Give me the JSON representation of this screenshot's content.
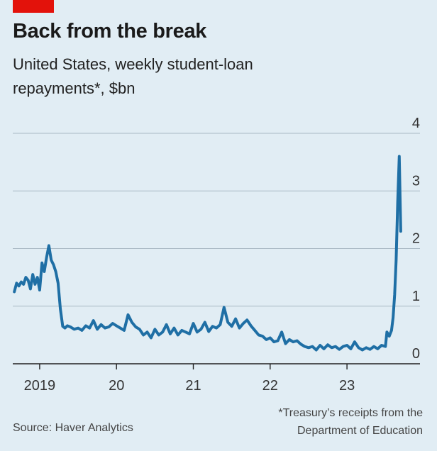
{
  "header": {
    "title": "Back from the break",
    "subtitle_line1": "United States, weekly student-loan",
    "subtitle_line2": "repayments*, $bn"
  },
  "footer": {
    "footnote_line1": "*Treasury’s receipts from the",
    "footnote_line2": "Department of Education",
    "source": "Source: Haver Analytics"
  },
  "colors": {
    "background": "#e1edf4",
    "line": "#1f6fa5",
    "tag": "#e3120b",
    "grid": "#a9b9c4"
  },
  "chart_data": {
    "type": "line",
    "ylim": [
      0,
      4
    ],
    "y_ticks": [
      "0",
      "1",
      "2",
      "3",
      "4"
    ],
    "y_tick_values": [
      0,
      1,
      2,
      3,
      4
    ],
    "x_ticks": [
      "2019",
      "20",
      "21",
      "22",
      "23"
    ],
    "x_tick_values": [
      2019.0,
      2020.0,
      2021.0,
      2022.0,
      2023.0
    ],
    "xlim": [
      2018.65,
      2023.95
    ],
    "grid": true,
    "series": [
      {
        "x": [
          2018.67,
          2018.7,
          2018.73,
          2018.76,
          2018.79,
          2018.82,
          2018.85,
          2018.88,
          2018.91,
          2018.94,
          2018.97,
          2019.0,
          2019.03,
          2019.06,
          2019.09,
          2019.12,
          2019.15,
          2019.18,
          2019.21,
          2019.24,
          2019.27,
          2019.3,
          2019.33,
          2019.36,
          2019.4,
          2019.45,
          2019.5,
          2019.55,
          2019.6,
          2019.65,
          2019.7,
          2019.75,
          2019.8,
          2019.85,
          2019.9,
          2019.95,
          2020.0,
          2020.05,
          2020.1,
          2020.15,
          2020.2,
          2020.25,
          2020.3,
          2020.35,
          2020.4,
          2020.45,
          2020.5,
          2020.55,
          2020.6,
          2020.65,
          2020.7,
          2020.75,
          2020.8,
          2020.85,
          2020.9,
          2020.95,
          2021.0,
          2021.05,
          2021.1,
          2021.15,
          2021.2,
          2021.25,
          2021.3,
          2021.35,
          2021.4,
          2021.45,
          2021.5,
          2021.55,
          2021.6,
          2021.65,
          2021.7,
          2021.75,
          2021.8,
          2021.85,
          2021.9,
          2021.95,
          2022.0,
          2022.05,
          2022.1,
          2022.15,
          2022.2,
          2022.25,
          2022.3,
          2022.35,
          2022.4,
          2022.45,
          2022.5,
          2022.55,
          2022.6,
          2022.65,
          2022.7,
          2022.75,
          2022.8,
          2022.85,
          2022.9,
          2022.95,
          2023.0,
          2023.05,
          2023.1,
          2023.15,
          2023.2,
          2023.25,
          2023.3,
          2023.35,
          2023.4,
          2023.45,
          2023.5,
          2023.52,
          2023.55,
          2023.58,
          2023.6,
          2023.62,
          2023.64,
          2023.66,
          2023.68,
          2023.7
        ],
        "values": [
          1.25,
          1.4,
          1.35,
          1.42,
          1.38,
          1.5,
          1.45,
          1.3,
          1.55,
          1.38,
          1.5,
          1.28,
          1.75,
          1.6,
          1.85,
          2.05,
          1.8,
          1.72,
          1.6,
          1.4,
          0.95,
          0.65,
          0.62,
          0.66,
          0.64,
          0.6,
          0.62,
          0.58,
          0.66,
          0.62,
          0.75,
          0.6,
          0.68,
          0.62,
          0.64,
          0.7,
          0.66,
          0.62,
          0.58,
          0.85,
          0.72,
          0.64,
          0.6,
          0.5,
          0.55,
          0.45,
          0.6,
          0.5,
          0.55,
          0.68,
          0.52,
          0.62,
          0.5,
          0.58,
          0.55,
          0.52,
          0.7,
          0.55,
          0.6,
          0.72,
          0.56,
          0.65,
          0.62,
          0.68,
          0.98,
          0.72,
          0.65,
          0.78,
          0.62,
          0.7,
          0.76,
          0.66,
          0.58,
          0.5,
          0.48,
          0.42,
          0.45,
          0.38,
          0.4,
          0.55,
          0.35,
          0.42,
          0.38,
          0.4,
          0.34,
          0.3,
          0.28,
          0.3,
          0.24,
          0.32,
          0.26,
          0.33,
          0.28,
          0.3,
          0.25,
          0.3,
          0.32,
          0.26,
          0.38,
          0.28,
          0.24,
          0.28,
          0.25,
          0.3,
          0.26,
          0.32,
          0.3,
          0.55,
          0.48,
          0.58,
          0.8,
          1.2,
          1.8,
          2.8,
          3.6,
          2.3
        ]
      }
    ]
  }
}
